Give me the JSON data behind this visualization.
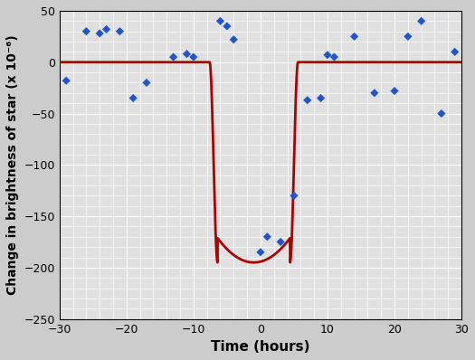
{
  "scatter_x": [
    -29,
    -26,
    -24,
    -23,
    -21,
    -19,
    -17,
    -13,
    -11,
    -10,
    -6,
    -5,
    -4,
    0,
    1,
    3,
    5,
    7,
    9,
    10,
    11,
    14,
    17,
    20,
    22,
    24,
    27,
    29
  ],
  "scatter_y": [
    -18,
    30,
    28,
    32,
    30,
    -35,
    -20,
    5,
    8,
    5,
    40,
    35,
    22,
    -185,
    -170,
    -175,
    -130,
    -37,
    -35,
    7,
    5,
    25,
    -30,
    -28,
    25,
    40,
    -50,
    10
  ],
  "bg_color": "#cccccc",
  "plot_bg_color": "#e0e0e0",
  "grid_major_color": "#ffffff",
  "grid_minor_color": "#d0d0d0",
  "scatter_color": "#2255cc",
  "line_color": "#aa0000",
  "xlabel": "Time (hours)",
  "ylabel": "Change in brightness of star (x 10⁻⁶)",
  "xlim": [
    -30,
    30
  ],
  "ylim": [
    -250,
    50
  ],
  "xticks": [
    -30,
    -20,
    -10,
    0,
    10,
    20,
    30
  ],
  "yticks": [
    -250,
    -200,
    -150,
    -100,
    -50,
    0,
    50
  ],
  "transit_ingress": -7.0,
  "transit_egress": 5.0,
  "transit_depth": -195,
  "ingress_steepness": 0.8,
  "line_width": 2.0
}
